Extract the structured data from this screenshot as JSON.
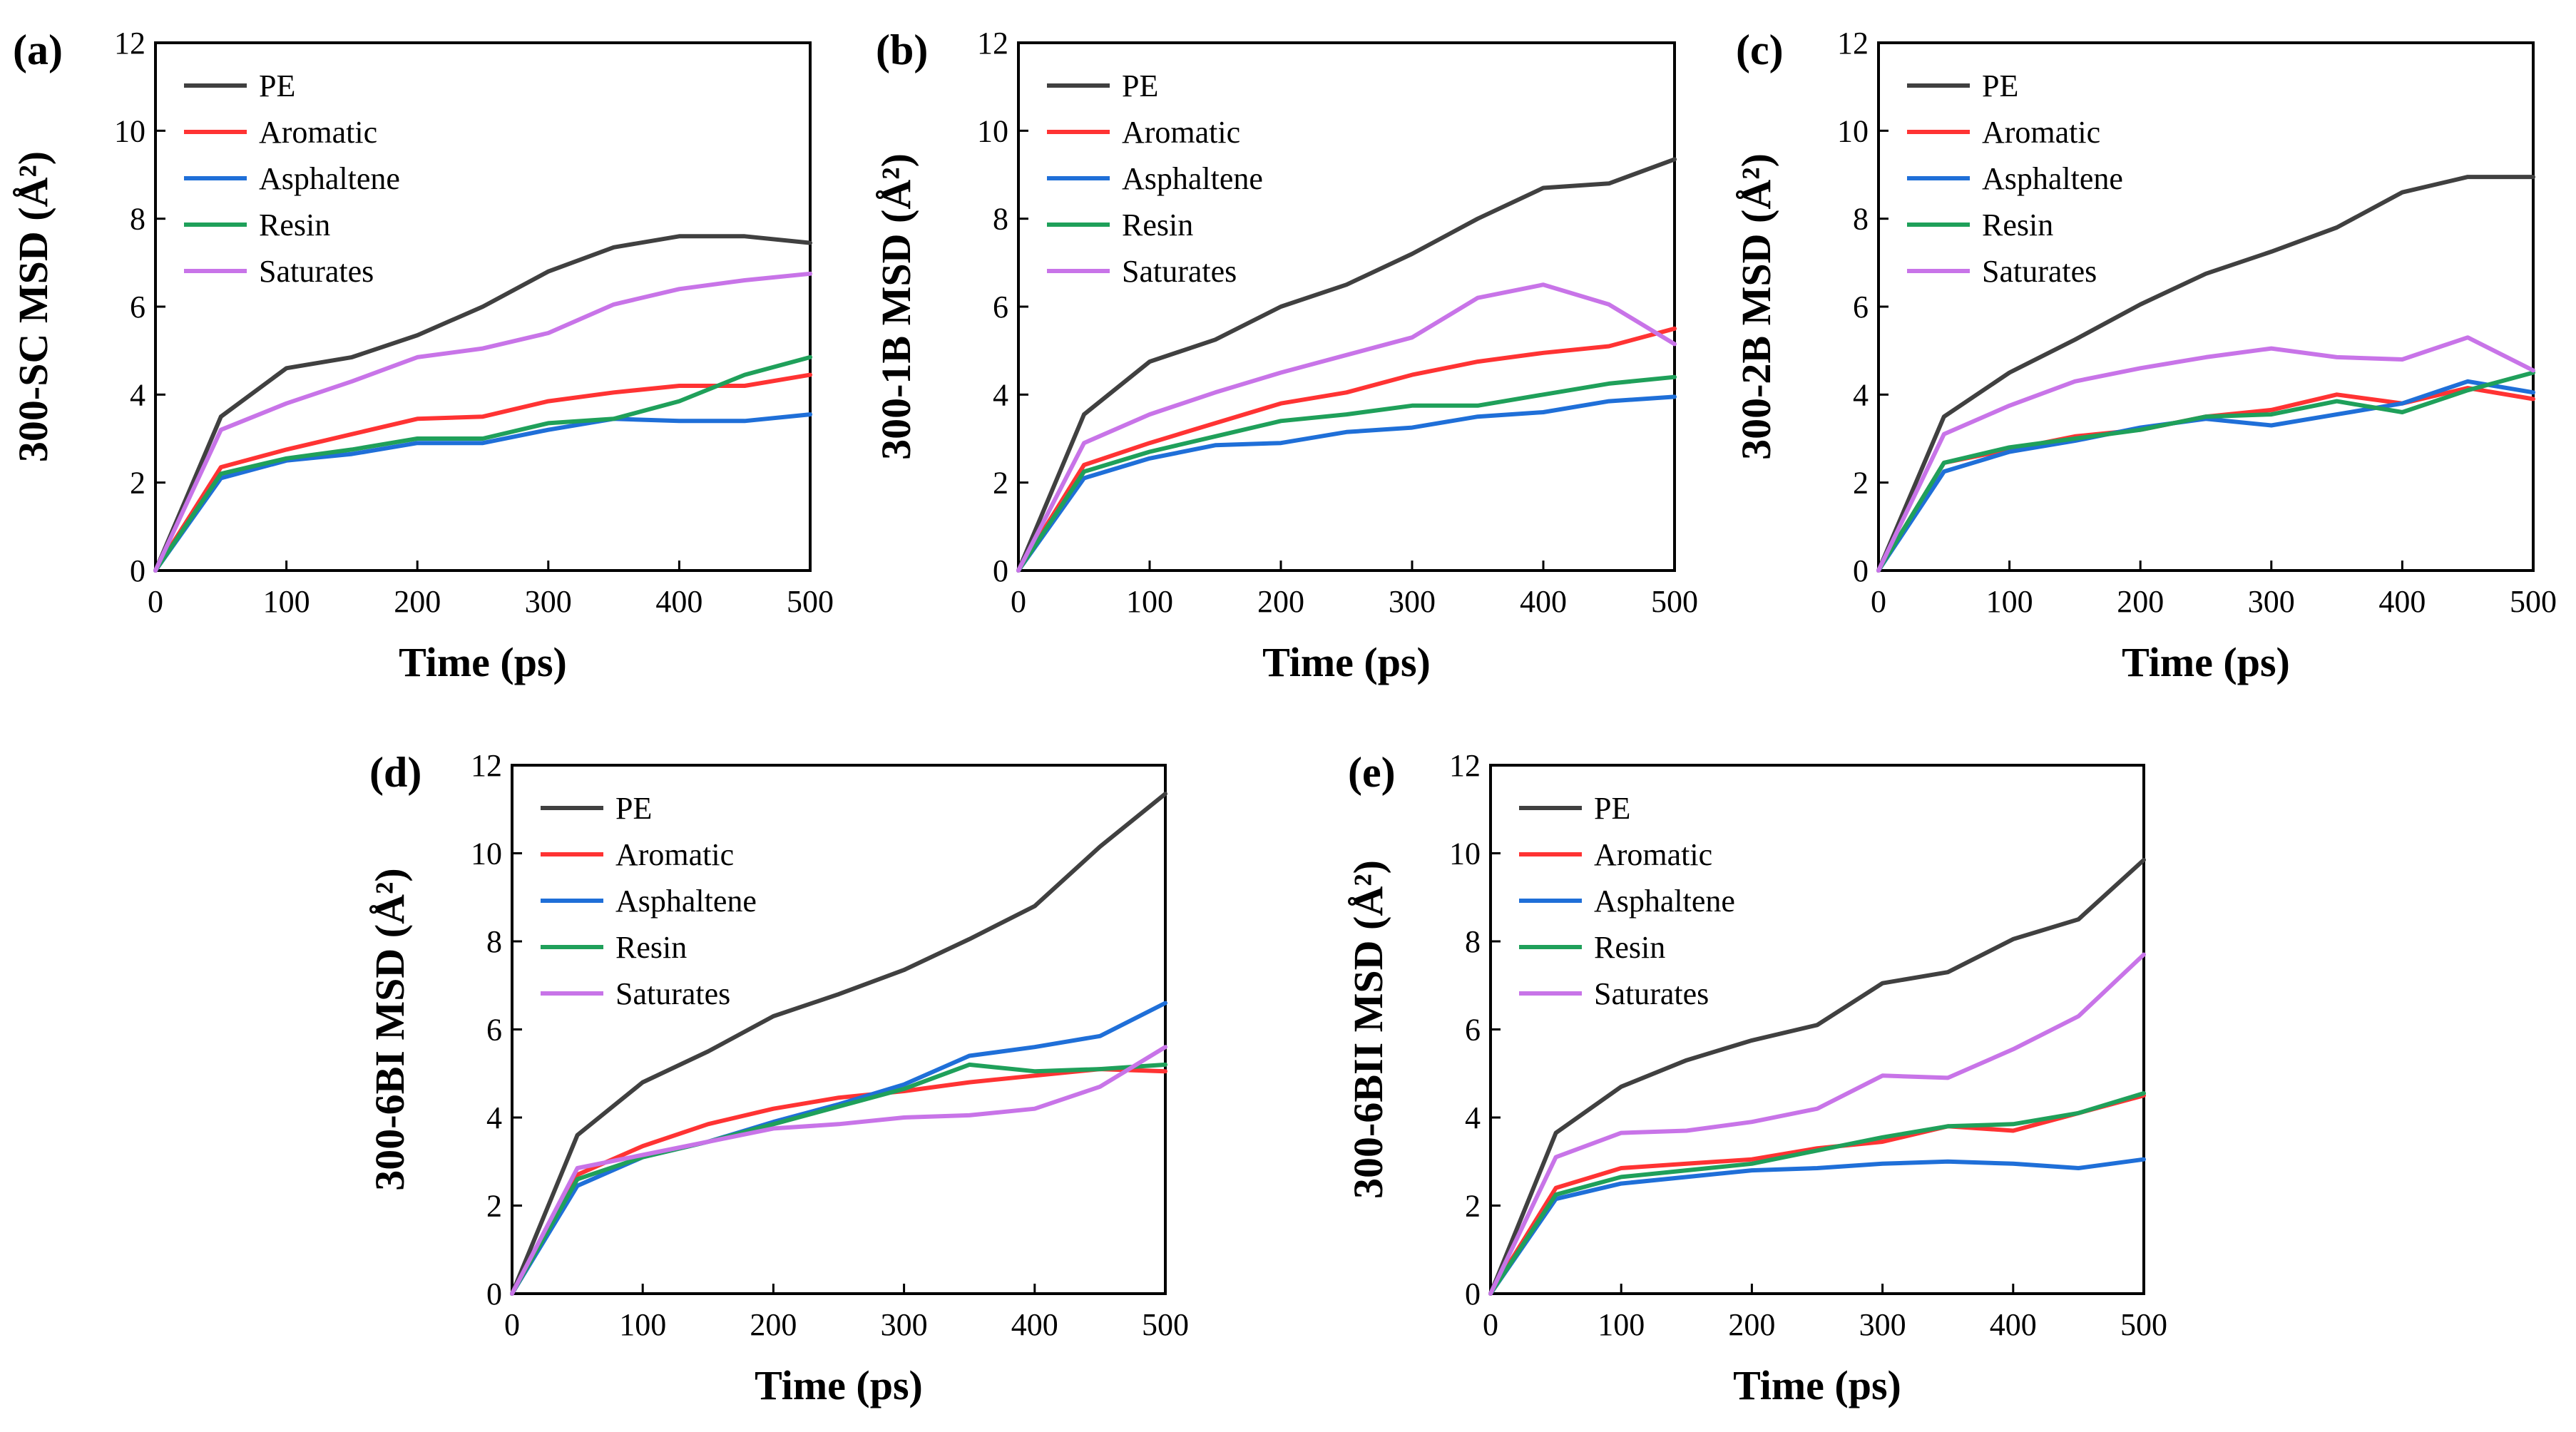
{
  "chart_data": [
    {
      "type": "line",
      "label": "(a)",
      "xlabel": "Time (ps)",
      "ylabel": "300-SC MSD (Å²)",
      "xlim": [
        0,
        500
      ],
      "ylim": [
        0,
        12
      ],
      "xticks": [
        0,
        100,
        200,
        300,
        400,
        500
      ],
      "yticks": [
        0,
        2,
        4,
        6,
        8,
        10,
        12
      ],
      "legend": "top-left",
      "x": [
        0,
        50,
        100,
        150,
        200,
        250,
        300,
        350,
        400,
        450,
        500
      ],
      "series": [
        {
          "name": "PE",
          "color": "#404040",
          "values": [
            0,
            3.5,
            4.6,
            4.85,
            5.35,
            6.0,
            6.8,
            7.35,
            7.6,
            7.6,
            7.45
          ]
        },
        {
          "name": "Aromatic",
          "color": "#ff3333",
          "values": [
            0,
            2.35,
            2.75,
            3.1,
            3.45,
            3.5,
            3.85,
            4.05,
            4.2,
            4.2,
            4.45
          ]
        },
        {
          "name": "Asphaltene",
          "color": "#1f6fd8",
          "values": [
            0,
            2.1,
            2.5,
            2.65,
            2.9,
            2.9,
            3.2,
            3.45,
            3.4,
            3.4,
            3.55
          ]
        },
        {
          "name": "Resin",
          "color": "#1fa05a",
          "values": [
            0,
            2.2,
            2.55,
            2.75,
            3.0,
            3.0,
            3.35,
            3.45,
            3.85,
            4.45,
            4.85
          ]
        },
        {
          "name": "Saturates",
          "color": "#c874e8",
          "values": [
            0,
            3.2,
            3.8,
            4.3,
            4.85,
            5.05,
            5.4,
            6.05,
            6.4,
            6.6,
            6.75
          ]
        }
      ]
    },
    {
      "type": "line",
      "label": "(b)",
      "xlabel": "Time (ps)",
      "ylabel": "300-1B MSD (Å²)",
      "xlim": [
        0,
        500
      ],
      "ylim": [
        0,
        12
      ],
      "xticks": [
        0,
        100,
        200,
        300,
        400,
        500
      ],
      "yticks": [
        0,
        2,
        4,
        6,
        8,
        10,
        12
      ],
      "legend": "top-left",
      "x": [
        0,
        50,
        100,
        150,
        200,
        250,
        300,
        350,
        400,
        450,
        500
      ],
      "series": [
        {
          "name": "PE",
          "color": "#404040",
          "values": [
            0,
            3.55,
            4.75,
            5.25,
            6.0,
            6.5,
            7.2,
            8.0,
            8.7,
            8.8,
            9.35
          ]
        },
        {
          "name": "Aromatic",
          "color": "#ff3333",
          "values": [
            0,
            2.4,
            2.9,
            3.35,
            3.8,
            4.05,
            4.45,
            4.75,
            4.95,
            5.1,
            5.5
          ]
        },
        {
          "name": "Asphaltene",
          "color": "#1f6fd8",
          "values": [
            0,
            2.1,
            2.55,
            2.85,
            2.9,
            3.15,
            3.25,
            3.5,
            3.6,
            3.85,
            3.95
          ]
        },
        {
          "name": "Resin",
          "color": "#1fa05a",
          "values": [
            0,
            2.25,
            2.7,
            3.05,
            3.4,
            3.55,
            3.75,
            3.75,
            4.0,
            4.25,
            4.4
          ]
        },
        {
          "name": "Saturates",
          "color": "#c874e8",
          "values": [
            0,
            2.9,
            3.55,
            4.05,
            4.5,
            4.9,
            5.3,
            6.2,
            6.5,
            6.05,
            5.15
          ]
        }
      ]
    },
    {
      "type": "line",
      "label": "(c)",
      "xlabel": "Time (ps)",
      "ylabel": "300-2B MSD (Å²)",
      "xlim": [
        0,
        500
      ],
      "ylim": [
        0,
        12
      ],
      "xticks": [
        0,
        100,
        200,
        300,
        400,
        500
      ],
      "yticks": [
        0,
        2,
        4,
        6,
        8,
        10,
        12
      ],
      "legend": "top-left",
      "x": [
        0,
        50,
        100,
        150,
        200,
        250,
        300,
        350,
        400,
        450,
        500
      ],
      "series": [
        {
          "name": "PE",
          "color": "#404040",
          "values": [
            0,
            3.5,
            4.5,
            5.25,
            6.05,
            6.75,
            7.25,
            7.8,
            8.6,
            8.95,
            8.95
          ]
        },
        {
          "name": "Aromatic",
          "color": "#ff3333",
          "values": [
            0,
            2.45,
            2.75,
            3.05,
            3.2,
            3.5,
            3.65,
            4.0,
            3.8,
            4.15,
            3.9
          ]
        },
        {
          "name": "Asphaltene",
          "color": "#1f6fd8",
          "values": [
            0,
            2.25,
            2.7,
            2.95,
            3.25,
            3.45,
            3.3,
            3.55,
            3.8,
            4.3,
            4.05
          ]
        },
        {
          "name": "Resin",
          "color": "#1fa05a",
          "values": [
            0,
            2.45,
            2.8,
            3.0,
            3.2,
            3.5,
            3.55,
            3.85,
            3.6,
            4.1,
            4.5
          ]
        },
        {
          "name": "Saturates",
          "color": "#c874e8",
          "values": [
            0,
            3.1,
            3.75,
            4.3,
            4.6,
            4.85,
            5.05,
            4.85,
            4.8,
            5.3,
            4.55
          ]
        }
      ]
    },
    {
      "type": "line",
      "label": "(d)",
      "xlabel": "Time (ps)",
      "ylabel": "300-6BI MSD (Å²)",
      "xlim": [
        0,
        500
      ],
      "ylim": [
        0,
        12
      ],
      "xticks": [
        0,
        100,
        200,
        300,
        400,
        500
      ],
      "yticks": [
        0,
        2,
        4,
        6,
        8,
        10,
        12
      ],
      "legend": "top-left",
      "x": [
        0,
        50,
        100,
        150,
        200,
        250,
        300,
        350,
        400,
        450,
        500
      ],
      "series": [
        {
          "name": "PE",
          "color": "#404040",
          "values": [
            0,
            3.6,
            4.8,
            5.5,
            6.3,
            6.8,
            7.35,
            8.05,
            8.8,
            10.15,
            11.35
          ]
        },
        {
          "name": "Aromatic",
          "color": "#ff3333",
          "values": [
            0,
            2.7,
            3.35,
            3.85,
            4.2,
            4.45,
            4.6,
            4.8,
            4.95,
            5.1,
            5.05
          ]
        },
        {
          "name": "Asphaltene",
          "color": "#1f6fd8",
          "values": [
            0,
            2.45,
            3.1,
            3.45,
            3.9,
            4.3,
            4.75,
            5.4,
            5.6,
            5.85,
            6.6
          ]
        },
        {
          "name": "Resin",
          "color": "#1fa05a",
          "values": [
            0,
            2.6,
            3.1,
            3.45,
            3.85,
            4.25,
            4.65,
            5.2,
            5.05,
            5.1,
            5.2
          ]
        },
        {
          "name": "Saturates",
          "color": "#c874e8",
          "values": [
            0,
            2.85,
            3.15,
            3.45,
            3.75,
            3.85,
            4.0,
            4.05,
            4.2,
            4.7,
            5.6
          ]
        }
      ]
    },
    {
      "type": "line",
      "label": "(e)",
      "xlabel": "Time (ps)",
      "ylabel": "300-6BII MSD (Å²)",
      "xlim": [
        0,
        500
      ],
      "ylim": [
        0,
        12
      ],
      "xticks": [
        0,
        100,
        200,
        300,
        400,
        500
      ],
      "yticks": [
        0,
        2,
        4,
        6,
        8,
        10,
        12
      ],
      "legend": "top-left",
      "x": [
        0,
        50,
        100,
        150,
        200,
        250,
        300,
        350,
        400,
        450,
        500
      ],
      "series": [
        {
          "name": "PE",
          "color": "#404040",
          "values": [
            0,
            3.65,
            4.7,
            5.3,
            5.75,
            6.1,
            7.05,
            7.3,
            8.05,
            8.5,
            9.85
          ]
        },
        {
          "name": "Aromatic",
          "color": "#ff3333",
          "values": [
            0,
            2.4,
            2.85,
            2.95,
            3.05,
            3.3,
            3.45,
            3.8,
            3.7,
            4.1,
            4.5
          ]
        },
        {
          "name": "Asphaltene",
          "color": "#1f6fd8",
          "values": [
            0,
            2.15,
            2.5,
            2.65,
            2.8,
            2.85,
            2.95,
            3.0,
            2.95,
            2.85,
            3.05
          ]
        },
        {
          "name": "Resin",
          "color": "#1fa05a",
          "values": [
            0,
            2.25,
            2.65,
            2.8,
            2.95,
            3.25,
            3.55,
            3.8,
            3.85,
            4.1,
            4.55
          ]
        },
        {
          "name": "Saturates",
          "color": "#c874e8",
          "values": [
            0,
            3.1,
            3.65,
            3.7,
            3.9,
            4.2,
            4.95,
            4.9,
            5.55,
            6.3,
            7.7
          ]
        }
      ]
    }
  ]
}
